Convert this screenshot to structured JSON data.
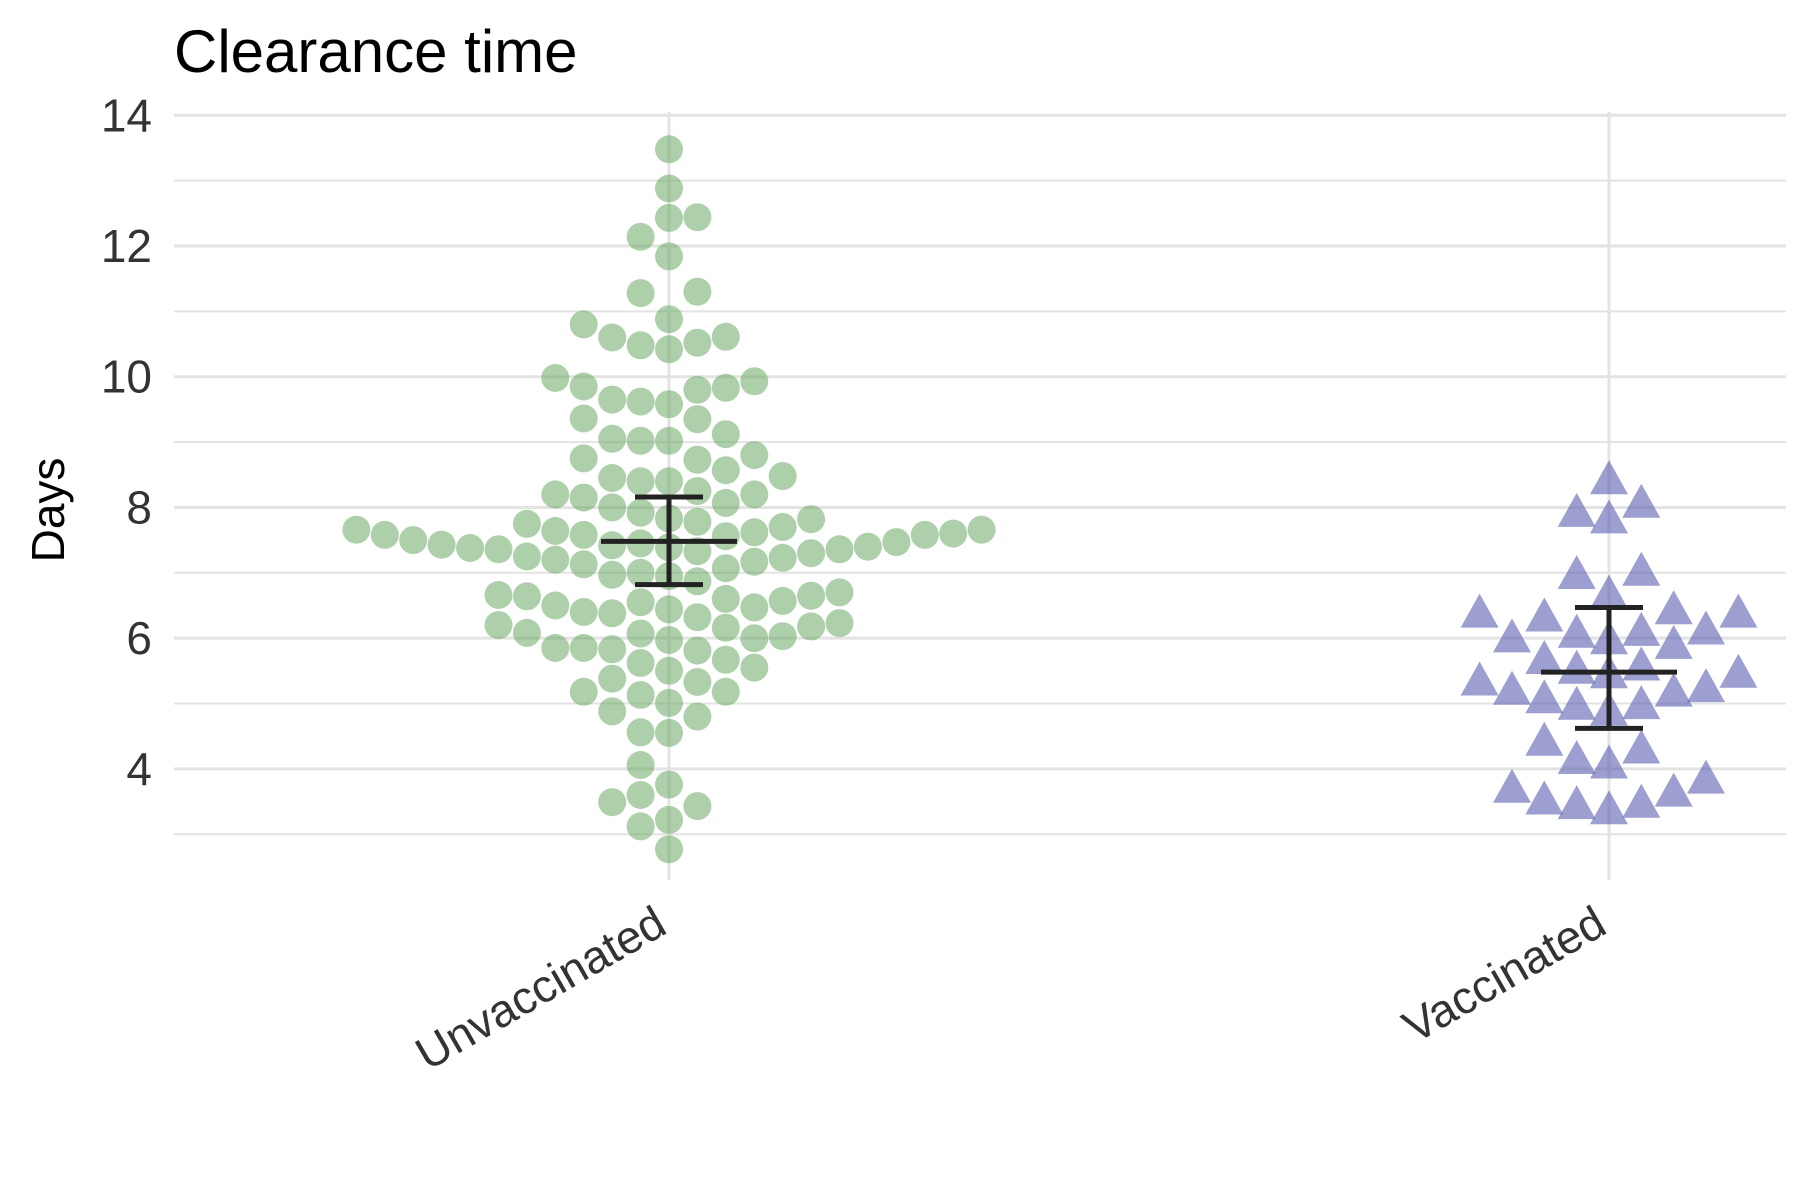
{
  "chart_data": {
    "type": "scatter",
    "title": "Clearance time",
    "xlabel": "",
    "ylabel": "Days",
    "categories": [
      "Unvaccinated",
      "Vaccinated"
    ],
    "yticks": [
      "4",
      "6",
      "8",
      "10",
      "12",
      "14"
    ],
    "ylim": [
      2.3,
      14.05
    ],
    "grid": "horizontal major and minor, vertical at categories",
    "legend": "none",
    "series": [
      {
        "category": "Unvaccinated",
        "marker": "circle",
        "color": "#6aaa64",
        "summary": {
          "mean": 7.48,
          "lower": 6.82,
          "upper": 8.16
        },
        "values": [
          13.48,
          12.88,
          12.43,
          12.44,
          12.14,
          11.84,
          11.28,
          11.3,
          10.88,
          10.8,
          10.61,
          10.52,
          10.48,
          10.42,
          10.6,
          9.98,
          9.93,
          9.83,
          9.8,
          9.85,
          9.65,
          9.62,
          9.58,
          9.35,
          9.36,
          9.12,
          9.05,
          9.02,
          9.02,
          8.8,
          8.75,
          8.73,
          8.57,
          8.48,
          8.45,
          8.4,
          8.4,
          8.25,
          8.2,
          8.2,
          8.15,
          8.07,
          8.0,
          7.92,
          7.82,
          7.83,
          7.78,
          7.75,
          7.7,
          7.66,
          7.66,
          7.64,
          7.62,
          7.6,
          7.58,
          7.58,
          7.58,
          7.56,
          7.5,
          7.47,
          7.45,
          7.43,
          7.42,
          7.4,
          7.39,
          7.38,
          7.36,
          7.36,
          7.33,
          7.3,
          7.25,
          7.23,
          7.2,
          7.17,
          7.13,
          7.07,
          7.0,
          6.97,
          6.95,
          6.87,
          6.7,
          6.66,
          6.65,
          6.64,
          6.6,
          6.57,
          6.55,
          6.5,
          6.47,
          6.44,
          6.4,
          6.38,
          6.32,
          6.23,
          6.2,
          6.18,
          6.16,
          6.08,
          6.07,
          6.03,
          6.0,
          5.97,
          5.85,
          5.85,
          5.83,
          5.81,
          5.67,
          5.62,
          5.55,
          5.5,
          5.38,
          5.33,
          5.18,
          5.18,
          5.13,
          5.01,
          4.88,
          4.8,
          4.56,
          4.55,
          4.06,
          3.76,
          3.6,
          3.49,
          3.43,
          3.22,
          3.12,
          2.77
        ]
      },
      {
        "category": "Vaccinated",
        "marker": "triangle",
        "color": "#5a5fb0",
        "summary": {
          "mean": 5.48,
          "lower": 4.62,
          "upper": 6.47
        },
        "values": [
          8.4,
          8.04,
          7.9,
          7.8,
          7.0,
          6.95,
          6.65,
          6.41,
          6.36,
          6.36,
          6.3,
          6.1,
          6.05,
          6.08,
          5.98,
          5.95,
          5.88,
          5.65,
          5.55,
          5.5,
          5.44,
          5.43,
          5.32,
          5.22,
          5.18,
          5.15,
          5.05,
          4.96,
          4.95,
          4.86,
          4.4,
          4.28,
          4.12,
          4.05,
          3.82,
          3.68,
          3.62,
          3.5,
          3.45,
          3.43,
          3.35
        ]
      }
    ]
  }
}
